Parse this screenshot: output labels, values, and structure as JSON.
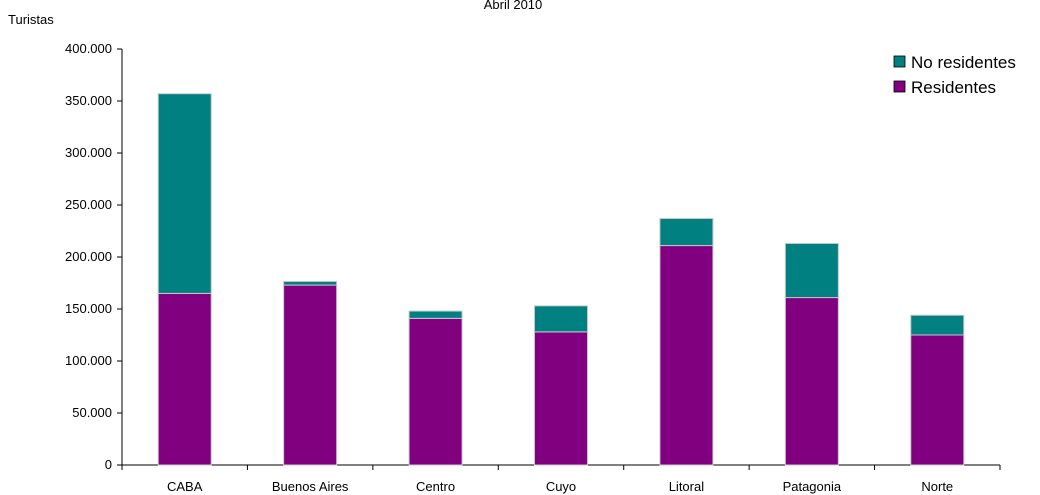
{
  "chart_data": {
    "type": "bar",
    "stacked": true,
    "title": "Abril 2010",
    "ylabel": "Turistas",
    "xlabel": "",
    "categories": [
      "CABA",
      "Buenos Aires",
      "Centro",
      "Cuyo",
      "Litoral",
      "Patagonia",
      "Norte"
    ],
    "ylim": [
      0,
      400000
    ],
    "yticks": [
      0,
      50000,
      100000,
      150000,
      200000,
      250000,
      300000,
      350000,
      400000
    ],
    "ytick_labels": [
      "0",
      "50.000",
      "100.000",
      "150.000",
      "200.000",
      "250.000",
      "300.000",
      "350.000",
      "400.000"
    ],
    "series": [
      {
        "name": "Residentes",
        "color": "#800080",
        "values": [
          165000,
          173000,
          141000,
          128000,
          211000,
          161000,
          125000
        ]
      },
      {
        "name": "No residentes",
        "color": "#008080",
        "values": [
          192000,
          3500,
          7000,
          25000,
          26000,
          52000,
          19000
        ]
      }
    ],
    "legend": {
      "position": "top-right",
      "order": [
        "No residentes",
        "Residentes"
      ]
    },
    "grid": false
  }
}
